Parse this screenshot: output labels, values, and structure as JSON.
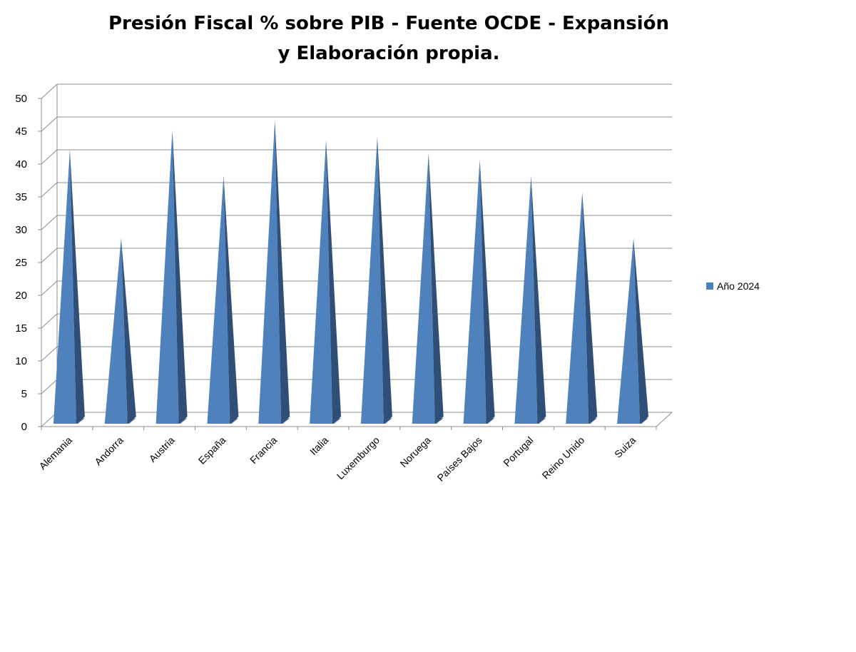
{
  "chart_data": {
    "type": "bar",
    "title": "Presión Fiscal % sobre PIB - Fuente OCDE - Expansión y Elaboración propia.",
    "categories": [
      "Alemania",
      "Andorra",
      "Austria",
      "España",
      "Francia",
      "Italia",
      "Luxemburgo",
      "Noruega",
      "Países Bajos",
      "Portugal",
      "Reino Unido",
      "Suiza"
    ],
    "series": [
      {
        "name": "Año 2024",
        "values": [
          41,
          27.5,
          44,
          37,
          45.5,
          42.5,
          43,
          40.5,
          39.5,
          37,
          34.5,
          27.5
        ],
        "color": "#4f81bd"
      }
    ],
    "ylim": [
      0,
      50
    ],
    "yticks": [
      0,
      5,
      10,
      15,
      20,
      25,
      30,
      35,
      40,
      45,
      50
    ],
    "grid": true,
    "legend": "right",
    "style": "3d-cone"
  }
}
